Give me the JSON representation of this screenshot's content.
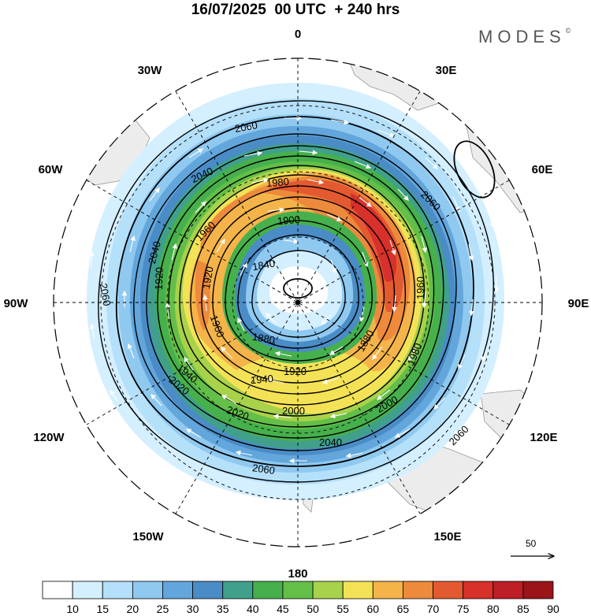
{
  "title": "16/07/2025  00 UTC  + 240 hrs",
  "brand": "MODES",
  "brand_mark": "©",
  "longitude_labels": {
    "lon_0": "0",
    "lon_30e": "30E",
    "lon_60e": "60E",
    "lon_90e": "90E",
    "lon_120e": "120E",
    "lon_150e": "150E",
    "lon_180": "180",
    "lon_150w": "150W",
    "lon_120w": "120W",
    "lon_90w": "90W",
    "lon_60w": "60W",
    "lon_30w": "30W"
  },
  "contour_labels": [
    "2060",
    "2040",
    "2040",
    "2060",
    "1980",
    "1960",
    "1960",
    "1900",
    "1920",
    "1840",
    "1880",
    "1880",
    "1900",
    "1920",
    "1920",
    "1940",
    "1940",
    "1980",
    "2000",
    "2000",
    "2020",
    "2020",
    "2040",
    "2060",
    "2060",
    "2060"
  ],
  "wind_scale": {
    "label": "50"
  },
  "colorbar": {
    "ticks": [
      "10",
      "15",
      "20",
      "25",
      "30",
      "35",
      "40",
      "45",
      "50",
      "55",
      "60",
      "65",
      "70",
      "75",
      "80",
      "85",
      "90"
    ],
    "colors": [
      "#ffffff",
      "#d4efff",
      "#b5e0fa",
      "#8fc9f0",
      "#62a6dc",
      "#4a8cc6",
      "#40a08c",
      "#46b04c",
      "#64bf48",
      "#a8d24a",
      "#f4e256",
      "#f4b44a",
      "#ee8a3c",
      "#e45a30",
      "#d8302a",
      "#be1e26",
      "#9a1418"
    ]
  }
}
